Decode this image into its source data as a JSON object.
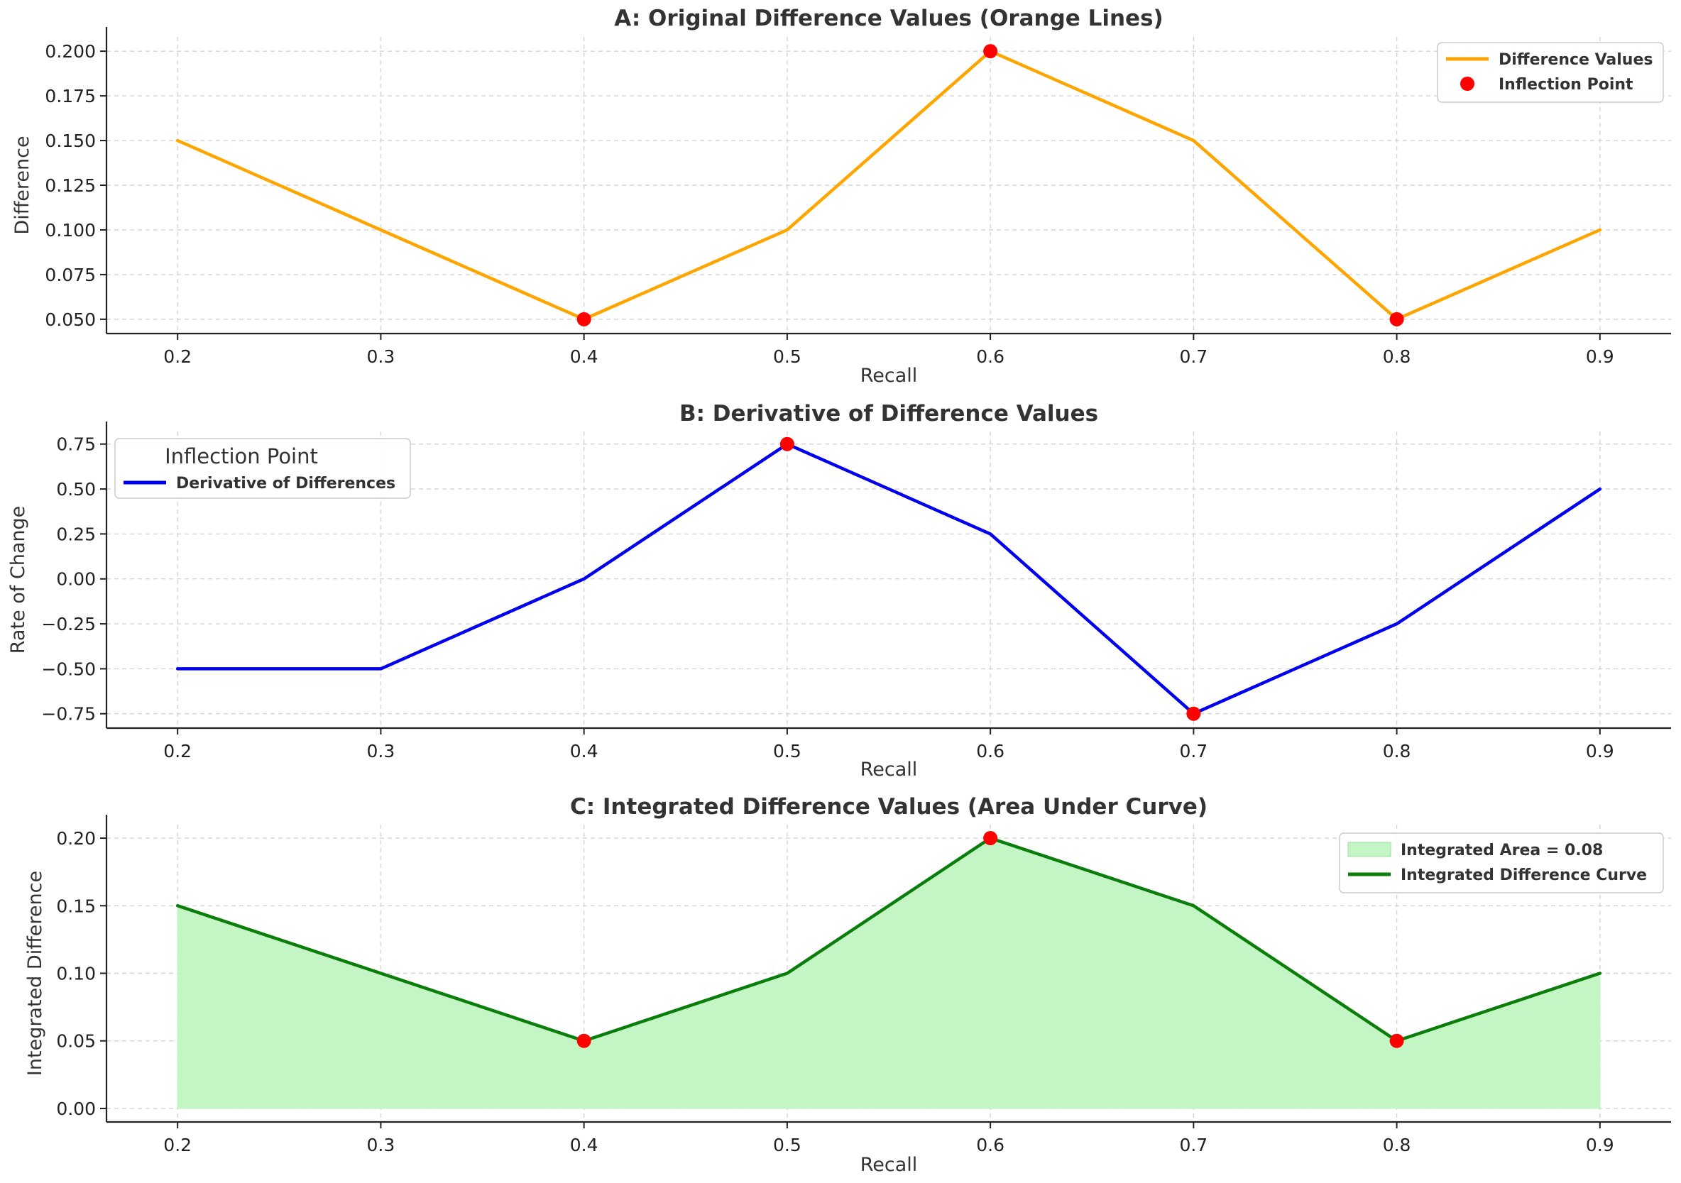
{
  "chart_data": [
    {
      "type": "line",
      "title": "A: Original Difference Values (Orange Lines)",
      "xlabel": "Recall",
      "ylabel": "Difference",
      "xlim": [
        0.165,
        0.935
      ],
      "ylim": [
        0.042,
        0.208
      ],
      "xticks": [
        0.2,
        0.3,
        0.4,
        0.5,
        0.6,
        0.7,
        0.8,
        0.9
      ],
      "xtick_labels": [
        "0.2",
        "0.3",
        "0.4",
        "0.5",
        "0.6",
        "0.7",
        "0.8",
        "0.9"
      ],
      "yticks": [
        0.05,
        0.075,
        0.1,
        0.125,
        0.15,
        0.175,
        0.2
      ],
      "ytick_labels": [
        "0.050",
        "0.075",
        "0.100",
        "0.125",
        "0.150",
        "0.175",
        "0.200"
      ],
      "grid": true,
      "x": [
        0.2,
        0.3,
        0.4,
        0.5,
        0.6,
        0.7,
        0.8,
        0.9
      ],
      "series": [
        {
          "name": "Difference Values",
          "color": "#FFA500",
          "values": [
            0.15,
            0.1,
            0.05,
            0.1,
            0.2,
            0.15,
            0.05,
            0.1
          ]
        }
      ],
      "markers": {
        "name": "Inflection Point",
        "color": "#FF0000",
        "x": [
          0.4,
          0.6,
          0.8
        ],
        "y": [
          0.05,
          0.2,
          0.05
        ]
      },
      "legend": {
        "position": "top-right",
        "title": "",
        "entries": [
          {
            "label": "Difference Values",
            "kind": "line",
            "color": "#FFA500"
          },
          {
            "label": "Inflection Point",
            "kind": "marker",
            "color": "#FF0000"
          }
        ]
      }
    },
    {
      "type": "line",
      "title": "B: Derivative of Difference Values",
      "xlabel": "Recall",
      "ylabel": "Rate of Change",
      "xlim": [
        0.165,
        0.935
      ],
      "ylim": [
        -0.83,
        0.82
      ],
      "xticks": [
        0.2,
        0.3,
        0.4,
        0.5,
        0.6,
        0.7,
        0.8,
        0.9
      ],
      "xtick_labels": [
        "0.2",
        "0.3",
        "0.4",
        "0.5",
        "0.6",
        "0.7",
        "0.8",
        "0.9"
      ],
      "yticks": [
        -0.75,
        -0.5,
        -0.25,
        0.0,
        0.25,
        0.5,
        0.75
      ],
      "ytick_labels": [
        "−0.75",
        "−0.50",
        "−0.25",
        "0.00",
        "0.25",
        "0.50",
        "0.75"
      ],
      "grid": true,
      "x": [
        0.2,
        0.3,
        0.4,
        0.5,
        0.6,
        0.7,
        0.8,
        0.9
      ],
      "series": [
        {
          "name": "Derivative of Differences",
          "color": "#0000EE",
          "values": [
            -0.5,
            -0.5,
            0.0,
            0.75,
            0.25,
            -0.75,
            -0.25,
            0.5
          ]
        }
      ],
      "markers": {
        "name": "Inflection Point",
        "color": "#FF0000",
        "x": [
          0.5,
          0.7
        ],
        "y": [
          0.75,
          -0.75
        ]
      },
      "legend": {
        "position": "top-left",
        "title": "Inflection Point",
        "entries": [
          {
            "label": "Derivative of Differences",
            "kind": "line",
            "color": "#0000EE"
          }
        ]
      }
    },
    {
      "type": "area",
      "title": "C: Integrated Difference Values (Area Under Curve)",
      "xlabel": "Recall",
      "ylabel": "Integrated Difference",
      "xlim": [
        0.165,
        0.935
      ],
      "ylim": [
        -0.01,
        0.21
      ],
      "xticks": [
        0.2,
        0.3,
        0.4,
        0.5,
        0.6,
        0.7,
        0.8,
        0.9
      ],
      "xtick_labels": [
        "0.2",
        "0.3",
        "0.4",
        "0.5",
        "0.6",
        "0.7",
        "0.8",
        "0.9"
      ],
      "yticks": [
        0.0,
        0.05,
        0.1,
        0.15,
        0.2
      ],
      "ytick_labels": [
        "0.00",
        "0.05",
        "0.10",
        "0.15",
        "0.20"
      ],
      "grid": true,
      "x": [
        0.2,
        0.3,
        0.4,
        0.5,
        0.6,
        0.7,
        0.8,
        0.9
      ],
      "series": [
        {
          "name": "Integrated Difference Curve",
          "color": "#0B7D0B",
          "fill_color": "#C4F5C4",
          "values": [
            0.15,
            0.1,
            0.05,
            0.1,
            0.2,
            0.15,
            0.05,
            0.1
          ]
        }
      ],
      "markers": {
        "name": "Inflection Point",
        "color": "#FF0000",
        "x": [
          0.4,
          0.6,
          0.8
        ],
        "y": [
          0.05,
          0.2,
          0.05
        ]
      },
      "legend": {
        "position": "top-right",
        "title": "",
        "entries": [
          {
            "label": "Integrated Area = 0.08",
            "kind": "patch",
            "color": "#C4F5C4"
          },
          {
            "label": "Integrated Difference Curve",
            "kind": "line",
            "color": "#0B7D0B"
          }
        ]
      }
    }
  ]
}
